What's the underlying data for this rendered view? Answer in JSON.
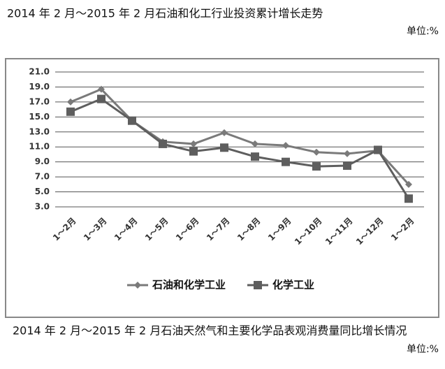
{
  "chart_data": {
    "type": "line",
    "title": "2014 年 2 月～2015 年 2 月石油和化工行业投资累计增长走势",
    "unit": "单位:%",
    "caption": "2014 年 2 月～2015 年 2 月石油天然气和主要化学品表观消费量同比增长情况",
    "caption_unit": "单位:%",
    "categories": [
      "1～2月",
      "1～3月",
      "1～4月",
      "1～5月",
      "1～6月",
      "1～7月",
      "1～8月",
      "1～9月",
      "1～10月",
      "1～11月",
      "1～12月",
      "1～2月"
    ],
    "series": [
      {
        "name": "石油和化学工业",
        "color": "#7a7a7a",
        "marker": "diamond",
        "values": [
          17.0,
          18.7,
          14.5,
          11.7,
          11.4,
          12.9,
          11.4,
          11.2,
          10.3,
          10.1,
          10.5,
          6.0
        ]
      },
      {
        "name": "化学工业",
        "color": "#5e5e5e",
        "marker": "square",
        "values": [
          15.7,
          17.4,
          14.5,
          11.4,
          10.4,
          10.9,
          9.7,
          9.0,
          8.4,
          8.5,
          10.6,
          4.1
        ]
      }
    ],
    "ylim": [
      3,
      21
    ],
    "yticks": [
      {
        "value": 3,
        "label": "3.0"
      },
      {
        "value": 5,
        "label": "5.0"
      },
      {
        "value": 7,
        "label": "7.0"
      },
      {
        "value": 9,
        "label": "9.0"
      },
      {
        "value": 11,
        "label": "11.0"
      },
      {
        "value": 13,
        "label": "13.0"
      },
      {
        "value": 15,
        "label": "15.0"
      },
      {
        "value": 17,
        "label": "17.0"
      },
      {
        "value": 19,
        "label": "19.0"
      },
      {
        "value": 21,
        "label": "21.0"
      }
    ],
    "grid": true,
    "legend": "bottom"
  }
}
